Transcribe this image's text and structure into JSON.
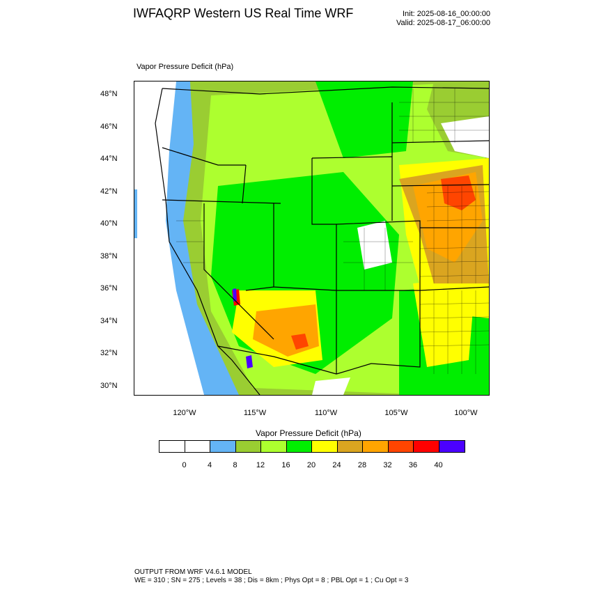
{
  "header": {
    "title": "IWFAQRP Western US Real Time WRF",
    "init": "Init: 2025-08-16_00:00:00",
    "valid": "Valid: 2025-08-17_06:00:00"
  },
  "field_label": "Vapor Pressure Deficit   (hPa)",
  "map": {
    "lat_labels": [
      "48°N",
      "46°N",
      "44°N",
      "42°N",
      "40°N",
      "38°N",
      "36°N",
      "34°N",
      "32°N",
      "30°N"
    ],
    "lon_labels": [
      "120°W",
      "115°W",
      "110°W",
      "105°W",
      "100°W"
    ]
  },
  "colorbar": {
    "title": "Vapor Pressure Deficit  (hPa)",
    "labels": [
      "0",
      "4",
      "8",
      "12",
      "16",
      "20",
      "24",
      "28",
      "32",
      "36",
      "40"
    ],
    "colors": [
      "#ffffff",
      "#ffffff",
      "#64b4f5",
      "#9acd32",
      "#adff2f",
      "#00ee00",
      "#ffff00",
      "#daa520",
      "#ffa500",
      "#ff4500",
      "#ff0000",
      "#4b00ff"
    ]
  },
  "footer": {
    "line1": "OUTPUT FROM WRF V4.6.1 MODEL",
    "line2": "WE = 310 ; SN = 275 ; Levels = 38 ; Dis = 8km ; Phys Opt = 8 ; PBL Opt = 1 ; Cu Opt = 3"
  }
}
